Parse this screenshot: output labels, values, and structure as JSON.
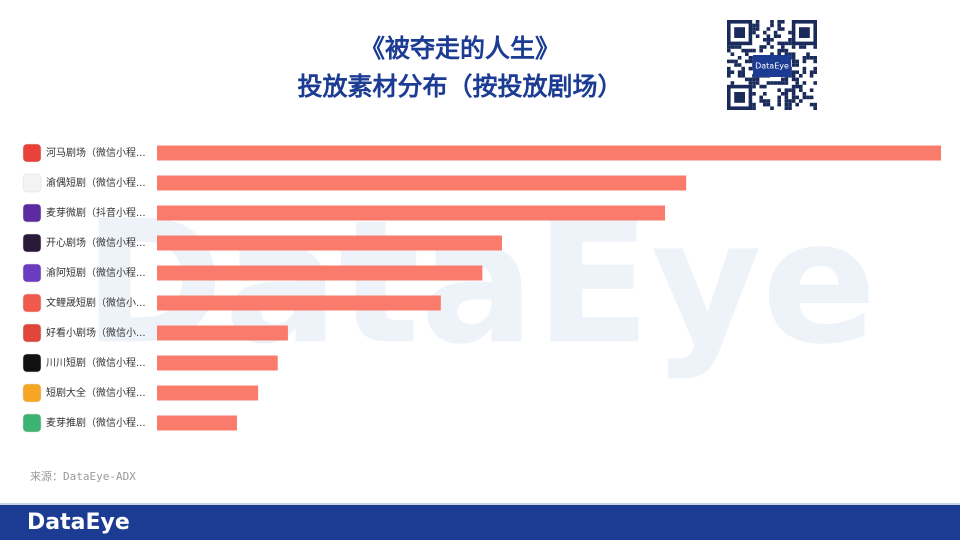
{
  "chart_data": {
    "type": "barh",
    "title_line1": "《被夺走的人生》",
    "title_line2": "投放素材分布（按投放剧场）",
    "categories": [
      "河马剧场（微信小程...",
      "渝偶短剧（微信小程...",
      "麦芽微剧（抖音小程...",
      "开心剧场（微信小程...",
      "渝阿短剧（微信小程...",
      "文鲤晟短剧（微信小...",
      "好看小剧场（微信小...",
      "川川短剧（微信小程...",
      "短剧大全（微信小程...",
      "麦芽推剧（微信小程..."
    ],
    "values": [
      100,
      67.5,
      64.8,
      44,
      41.5,
      36.2,
      16.7,
      15.4,
      12.9,
      10.2
    ],
    "color": "#fa7b6b",
    "xlim": [
      0,
      100
    ],
    "source": "来源：DataEye-ADX"
  },
  "watermark": "DataEye",
  "qr_label": "DataEye",
  "footer": {
    "logo": "DataEye"
  }
}
